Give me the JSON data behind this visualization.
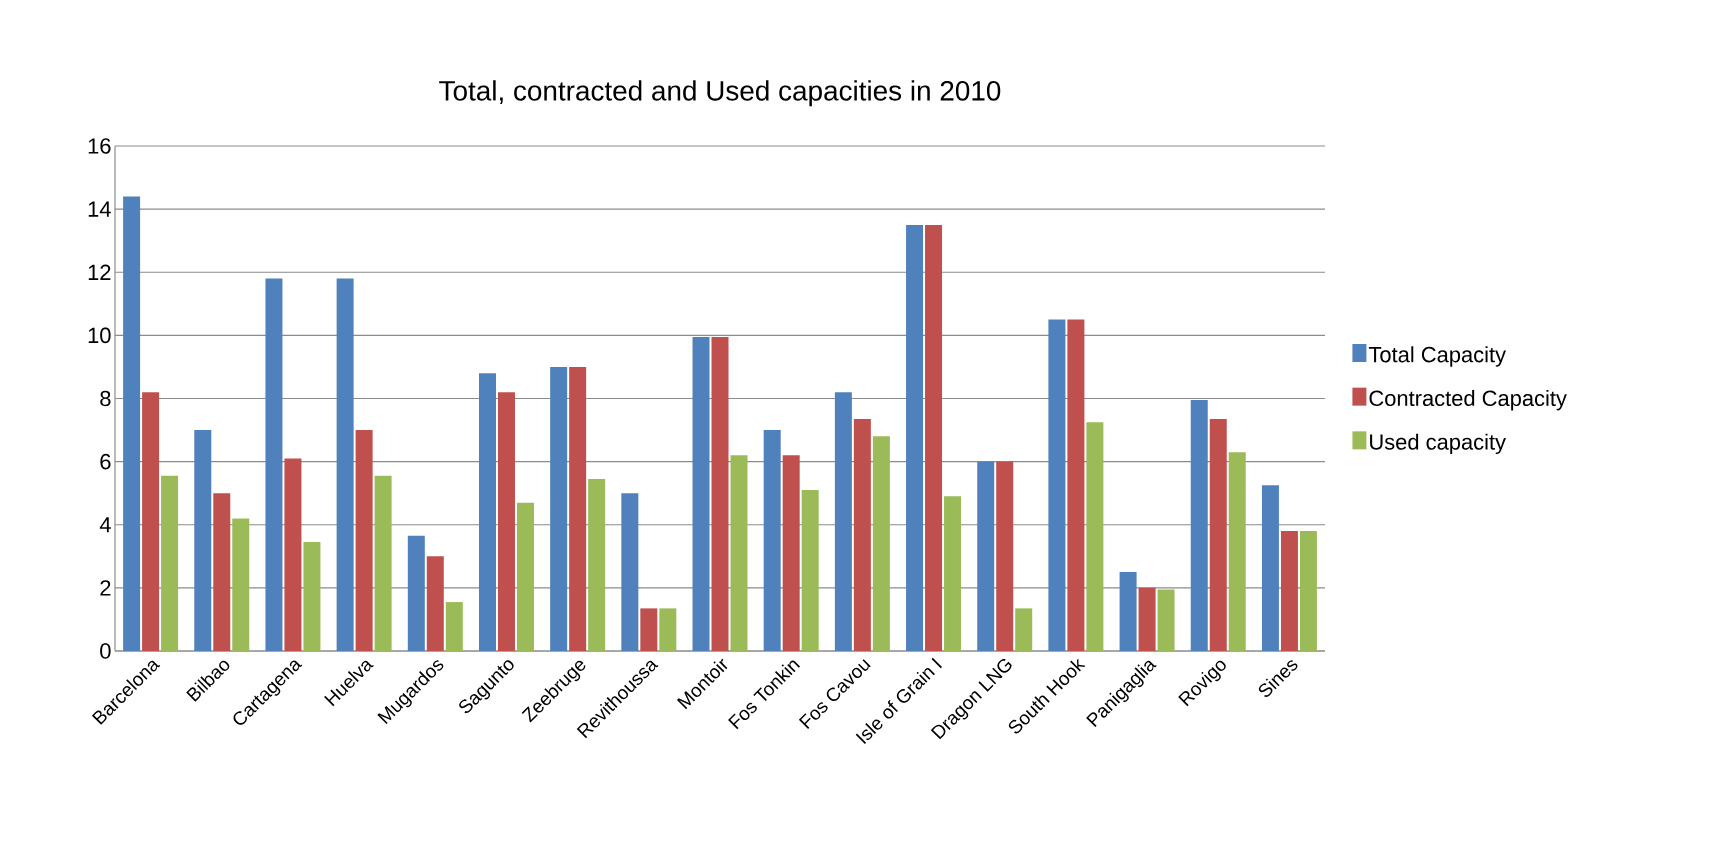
{
  "chart_data": {
    "type": "bar",
    "title": "Total, contracted and Used capacities in 2010",
    "categories": [
      "Barcelona",
      "Bilbao",
      "Cartagena",
      "Huelva",
      "Mugardos",
      "Sagunto",
      "Zeebruge",
      "Revithoussa",
      "Montoir",
      "Fos Tonkin",
      "Fos Cavou",
      "Isle of Grain I",
      "Dragon LNG",
      "South Hook",
      "Panigaglia",
      "Rovigo",
      "Sines"
    ],
    "series": [
      {
        "name": "Total Capacity",
        "color": "#4f81bd",
        "values": [
          14.4,
          7.0,
          11.8,
          11.8,
          3.65,
          8.8,
          9.0,
          5.0,
          9.95,
          7.0,
          8.2,
          13.5,
          6.0,
          10.5,
          2.5,
          7.95,
          5.25
        ]
      },
      {
        "name": "Contracted Capacity",
        "color": "#c0504d",
        "values": [
          8.2,
          5.0,
          6.1,
          7.0,
          3.0,
          8.2,
          9.0,
          1.35,
          9.95,
          6.2,
          7.35,
          13.5,
          6.0,
          10.5,
          2.0,
          7.35,
          3.8
        ]
      },
      {
        "name": "Used capacity",
        "color": "#9bbb59",
        "values": [
          5.55,
          4.2,
          3.45,
          5.55,
          1.55,
          4.7,
          5.45,
          1.35,
          6.2,
          5.1,
          6.8,
          4.9,
          1.35,
          7.25,
          1.95,
          6.3,
          3.8
        ]
      }
    ],
    "ylim": [
      0,
      16
    ],
    "yticks": [
      0,
      2,
      4,
      6,
      8,
      10,
      12,
      14,
      16
    ],
    "grid": "y",
    "legend": "right"
  }
}
